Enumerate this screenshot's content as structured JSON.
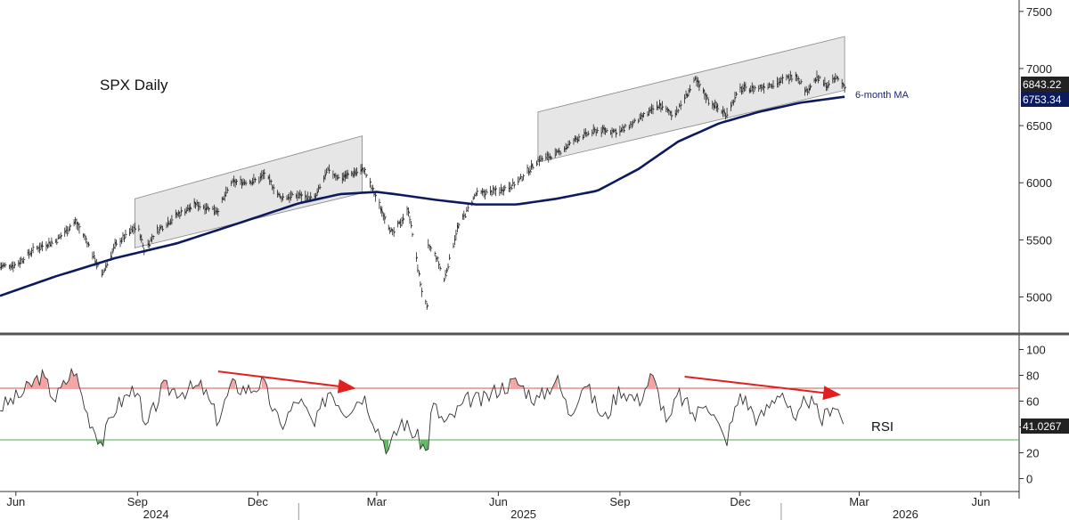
{
  "chart_data": [
    {
      "type": "line",
      "title": "SPX Daily",
      "series": [
        {
          "values_note": "",
          "x": [
            "2024-05-20",
            "2024-06-01",
            "2024-06-15",
            "2024-07-01",
            "2024-07-16",
            "2024-07-25",
            "2024-08-05",
            "2024-08-15",
            "2024-09-01",
            "2024-09-06",
            "2024-09-15",
            "2024-10-01",
            "2024-10-15",
            "2024-11-01",
            "2024-11-11",
            "2024-12-01",
            "2024-12-06",
            "2024-12-18",
            "2025-01-01",
            "2025-01-13",
            "2025-01-23",
            "2025-02-01",
            "2025-02-19",
            "2025-03-01",
            "2025-03-13",
            "2025-03-25",
            "2025-04-04",
            "2025-04-08",
            "2025-04-09",
            "2025-04-15",
            "2025-04-21",
            "2025-05-01",
            "2025-05-15",
            "2025-06-01",
            "2025-06-15",
            "2025-07-01",
            "2025-07-15",
            "2025-08-01",
            "2025-08-15",
            "2025-09-01",
            "2025-09-15",
            "2025-10-01",
            "2025-10-10",
            "2025-10-15",
            "2025-10-28",
            "2025-11-07",
            "2025-11-20",
            "2025-12-01",
            "2025-12-15",
            "2026-01-01",
            "2026-01-12",
            "2026-01-20",
            "2026-01-28",
            "2026-02-05",
            "2026-02-12",
            "2026-02-18"
          ],
          "values": [
            5270,
            5280,
            5420,
            5490,
            5660,
            5480,
            5190,
            5450,
            5630,
            5410,
            5570,
            5720,
            5810,
            5760,
            6000,
            6020,
            6080,
            5870,
            5890,
            5860,
            6110,
            6040,
            6120,
            5850,
            5550,
            5760,
            5050,
            4900,
            5450,
            5350,
            5150,
            5600,
            5900,
            5930,
            6000,
            6200,
            6250,
            6400,
            6460,
            6450,
            6550,
            6680,
            6600,
            6640,
            6900,
            6720,
            6600,
            6820,
            6830,
            6890,
            6950,
            6800,
            6920,
            6850,
            6920,
            6843
          ]
        },
        {
          "name": "6-month MA",
          "x": [
            "2024-05-20",
            "2024-07-01",
            "2024-08-15",
            "2024-10-01",
            "2024-11-15",
            "2025-01-01",
            "2025-02-01",
            "2025-03-01",
            "2025-03-15",
            "2025-04-15",
            "2025-05-15",
            "2025-06-15",
            "2025-07-15",
            "2025-08-15",
            "2025-09-15",
            "2025-10-15",
            "2025-11-15",
            "2025-12-15",
            "2026-01-15",
            "2026-02-18"
          ],
          "values": [
            5010,
            5180,
            5340,
            5470,
            5640,
            5820,
            5900,
            5920,
            5900,
            5850,
            5810,
            5810,
            5860,
            5930,
            6120,
            6360,
            6520,
            6620,
            6700,
            6753
          ]
        }
      ],
      "channels": [
        {
          "x": [
            "2024-08-30",
            "2025-02-18"
          ],
          "lower": [
            5430,
            5910
          ],
          "upper": [
            5860,
            6410
          ]
        },
        {
          "x": [
            "2025-07-01",
            "2026-02-18"
          ],
          "lower": [
            6180,
            6810
          ],
          "upper": [
            6620,
            7280
          ]
        }
      ],
      "xlim": [
        "2024-05-20",
        "2026-06-30"
      ],
      "ylim": [
        4700,
        7600
      ],
      "yticks": [
        5000,
        5500,
        6000,
        6500,
        7000,
        7500
      ],
      "last_price": "6843.22",
      "last_ma": "6753.34",
      "ma_label": "6-month MA"
    },
    {
      "type": "line",
      "title": "RSI",
      "series": [
        {
          "x": [
            "2024-05-20",
            "2024-06-05",
            "2024-06-20",
            "2024-07-01",
            "2024-07-15",
            "2024-07-25",
            "2024-08-05",
            "2024-08-15",
            "2024-09-01",
            "2024-09-06",
            "2024-09-20",
            "2024-10-05",
            "2024-10-20",
            "2024-11-01",
            "2024-11-11",
            "2024-11-25",
            "2024-12-05",
            "2024-12-18",
            "2025-01-01",
            "2025-01-13",
            "2025-01-24",
            "2025-02-05",
            "2025-02-19",
            "2025-03-01",
            "2025-03-10",
            "2025-03-20",
            "2025-04-04",
            "2025-04-08",
            "2025-04-12",
            "2025-04-22",
            "2025-05-01",
            "2025-05-10",
            "2025-05-20",
            "2025-06-01",
            "2025-06-15",
            "2025-07-01",
            "2025-07-15",
            "2025-07-25",
            "2025-08-05",
            "2025-08-20",
            "2025-09-01",
            "2025-09-15",
            "2025-09-25",
            "2025-10-08",
            "2025-10-15",
            "2025-10-28",
            "2025-11-05",
            "2025-11-20",
            "2025-12-01",
            "2025-12-15",
            "2026-01-01",
            "2026-01-12",
            "2026-01-20",
            "2026-02-01",
            "2026-02-10",
            "2026-02-18"
          ],
          "values": [
            55,
            65,
            80,
            62,
            85,
            50,
            27,
            55,
            72,
            35,
            70,
            68,
            71,
            45,
            72,
            69,
            74,
            40,
            62,
            40,
            70,
            52,
            65,
            40,
            22,
            45,
            28,
            18,
            58,
            42,
            52,
            62,
            60,
            70,
            75,
            60,
            78,
            50,
            75,
            45,
            70,
            60,
            80,
            42,
            66,
            48,
            62,
            28,
            66,
            45,
            70,
            40,
            64,
            45,
            60,
            41.0267
          ]
        }
      ],
      "xlim": [
        "2024-05-20",
        "2026-06-30"
      ],
      "ylim": [
        -10,
        110
      ],
      "yticks": [
        0,
        20,
        40,
        60,
        80,
        100
      ],
      "overbought": 70,
      "oversold": 30,
      "last_value": "41.0267",
      "label": "RSI",
      "arrows": [
        {
          "from": [
            "2024-11-01",
            83
          ],
          "to": [
            "2025-02-12",
            70
          ]
        },
        {
          "from": [
            "2025-10-20",
            79
          ],
          "to": [
            "2026-02-14",
            65
          ]
        }
      ]
    }
  ],
  "x_axis": {
    "months": [
      {
        "label": "Jun",
        "date": "2024-06-01"
      },
      {
        "label": "Sep",
        "date": "2024-09-01"
      },
      {
        "label": "Dec",
        "date": "2024-12-01"
      },
      {
        "label": "Mar",
        "date": "2025-03-01"
      },
      {
        "label": "Jun",
        "date": "2025-06-01"
      },
      {
        "label": "Sep",
        "date": "2025-09-01"
      },
      {
        "label": "Dec",
        "date": "2025-12-01"
      },
      {
        "label": "Mar",
        "date": "2026-03-01"
      },
      {
        "label": "Jun",
        "date": "2026-06-01"
      }
    ],
    "years": [
      {
        "label": "2024",
        "date": "2024-09-15"
      },
      {
        "label": "2025",
        "date": "2025-06-20"
      },
      {
        "label": "2026",
        "date": "2026-04-05"
      }
    ],
    "year_breaks": [
      "2025-01-01",
      "2026-01-01"
    ]
  },
  "colors": {
    "price": "#222222",
    "ma": "#0d1a5e",
    "channel_fill": "#e6e6e6",
    "channel_edge": "#888888",
    "overbought_line": "#d9534f",
    "oversold_line": "#4caf50",
    "overbought_fill": "#f4a3a3",
    "oversold_fill": "#5cb85c",
    "arrow": "#e02020"
  }
}
